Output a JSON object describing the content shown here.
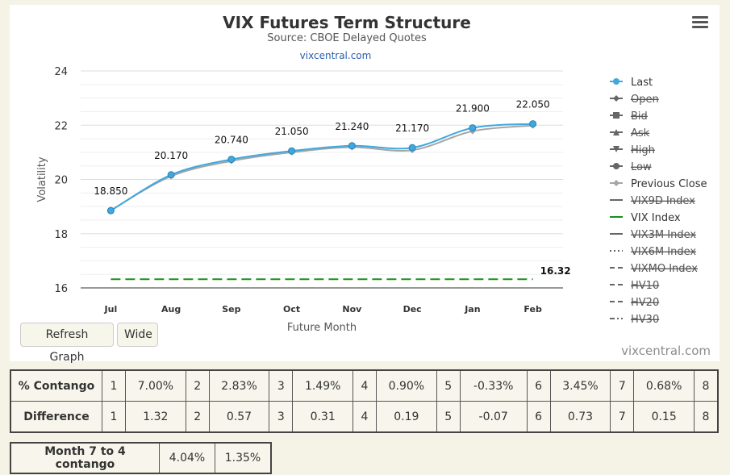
{
  "title": "VIX Futures Term Structure",
  "subtitle": "Source: CBOE Delayed Quotes",
  "link": "vixcentral.com",
  "watermark": "vixcentral.com",
  "buttons": {
    "refresh": "Refresh Graph",
    "wide": "Wide"
  },
  "chart_data": {
    "type": "line",
    "title": "VIX Futures Term Structure",
    "subtitle": "Source: CBOE Delayed Quotes",
    "xlabel": "Future Month",
    "ylabel": "Volatility",
    "categories": [
      "Jul",
      "Aug",
      "Sep",
      "Oct",
      "Nov",
      "Dec",
      "Jan",
      "Feb"
    ],
    "ylim": [
      16,
      24
    ],
    "yticks": [
      16,
      18,
      20,
      22,
      24
    ],
    "grid": true,
    "legend_position": "right",
    "series": [
      {
        "name": "Last",
        "values": [
          18.85,
          20.17,
          20.74,
          21.05,
          21.24,
          21.17,
          21.9,
          22.05
        ],
        "color": "#3fa9df",
        "labels": [
          "18.850",
          "20.170",
          "20.740",
          "21.050",
          "21.240",
          "21.170",
          "21.900",
          "22.050"
        ],
        "visible": true
      },
      {
        "name": "Previous Close",
        "values": [
          18.86,
          20.12,
          20.68,
          21.0,
          21.19,
          21.08,
          21.78,
          21.99
        ],
        "color": "#a6a6a6",
        "visible": true
      },
      {
        "name": "VIX Index",
        "values": [
          16.32,
          16.32,
          16.32,
          16.32,
          16.32,
          16.32,
          16.32,
          16.32
        ],
        "color": "#1a8f1a",
        "label": "16.32",
        "visible": true
      }
    ],
    "legend": [
      {
        "name": "Last",
        "symbol": "circle",
        "color": "#3fa9df",
        "disabled": false
      },
      {
        "name": "Open",
        "symbol": "diamond",
        "color": "#555555",
        "disabled": true
      },
      {
        "name": "Bid",
        "symbol": "square",
        "color": "#555555",
        "disabled": true
      },
      {
        "name": "Ask",
        "symbol": "triangle",
        "color": "#555555",
        "disabled": true
      },
      {
        "name": "High",
        "symbol": "triangle-down",
        "color": "#555555",
        "disabled": true
      },
      {
        "name": "Low",
        "symbol": "circle",
        "color": "#555555",
        "disabled": true
      },
      {
        "name": "Previous Close",
        "symbol": "diamond",
        "color": "#a6a6a6",
        "disabled": false
      },
      {
        "name": "VIX9D Index",
        "symbol": "solid",
        "color": "#555555",
        "disabled": true
      },
      {
        "name": "VIX Index",
        "symbol": "solid",
        "color": "#1a8f1a",
        "disabled": false
      },
      {
        "name": "VIX3M Index",
        "symbol": "solid",
        "color": "#555555",
        "disabled": true
      },
      {
        "name": "VIX6M Index",
        "symbol": "dotted",
        "color": "#555555",
        "disabled": true
      },
      {
        "name": "VIXMO Index",
        "symbol": "dashed",
        "color": "#555555",
        "disabled": true
      },
      {
        "name": "HV10",
        "symbol": "dashed",
        "color": "#555555",
        "disabled": true
      },
      {
        "name": "HV20",
        "symbol": "dashed",
        "color": "#555555",
        "disabled": true
      },
      {
        "name": "HV30",
        "symbol": "dashdot",
        "color": "#555555",
        "disabled": true
      }
    ]
  },
  "contango_table": {
    "rows": [
      {
        "label": "% Contango",
        "cells": [
          {
            "n": "1",
            "v": "7.00%"
          },
          {
            "n": "2",
            "v": "2.83%"
          },
          {
            "n": "3",
            "v": "1.49%"
          },
          {
            "n": "4",
            "v": "0.90%"
          },
          {
            "n": "5",
            "v": "-0.33%"
          },
          {
            "n": "6",
            "v": "3.45%"
          },
          {
            "n": "7",
            "v": "0.68%"
          },
          {
            "n": "8",
            "v": ""
          }
        ]
      },
      {
        "label": "Difference",
        "cells": [
          {
            "n": "1",
            "v": "1.32"
          },
          {
            "n": "2",
            "v": "0.57"
          },
          {
            "n": "3",
            "v": "0.31"
          },
          {
            "n": "4",
            "v": "0.19"
          },
          {
            "n": "5",
            "v": "-0.07"
          },
          {
            "n": "6",
            "v": "0.73"
          },
          {
            "n": "7",
            "v": "0.15"
          },
          {
            "n": "8",
            "v": ""
          }
        ]
      }
    ]
  },
  "summary_table": {
    "label": "Month 7 to 4 contango",
    "values": [
      "4.04%",
      "1.35%"
    ]
  }
}
